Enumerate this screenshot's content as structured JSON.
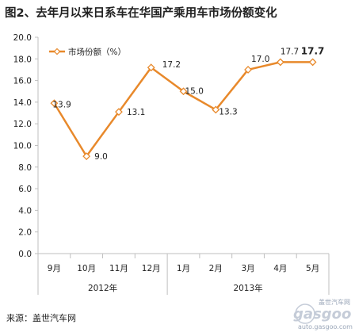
{
  "title": "图2、去年月以来日系车在华国产乘用车市场份额变化",
  "source": "来源：盖世汽车网",
  "watermark": {
    "logo": "gasgoo",
    "cn": "盖世汽车网",
    "url": "auto.gasgoo.com"
  },
  "colors": {
    "line": "#e8892b",
    "grid": "#bfbfbf",
    "marker_fill": "#ffffff"
  },
  "chart_data": {
    "type": "line",
    "title": "图2、去年月以来日系车在华国产乘用车市场份额变化",
    "categories": [
      "9月",
      "10月",
      "11月",
      "12月",
      "1月",
      "2月",
      "3月",
      "4月",
      "5月"
    ],
    "category_groups": [
      {
        "label": "2012年",
        "count": 4
      },
      {
        "label": "2013年",
        "count": 5
      }
    ],
    "series": [
      {
        "name": "市场份额（%）",
        "values": [
          13.9,
          9.0,
          13.1,
          17.2,
          15.0,
          13.3,
          17.0,
          17.7,
          17.7
        ]
      }
    ],
    "data_labels": [
      "13.9",
      "9.0",
      "13.1",
      "17.2",
      "15.0",
      "13.3",
      "17.0",
      "17.7",
      "17.7"
    ],
    "ylim": [
      0,
      20
    ],
    "yticks": [
      "0.0",
      "2.0",
      "4.0",
      "6.0",
      "8.0",
      "10.0",
      "12.0",
      "14.0",
      "16.0",
      "18.0",
      "20.0"
    ],
    "grid": false,
    "legend_position": "top-left"
  }
}
